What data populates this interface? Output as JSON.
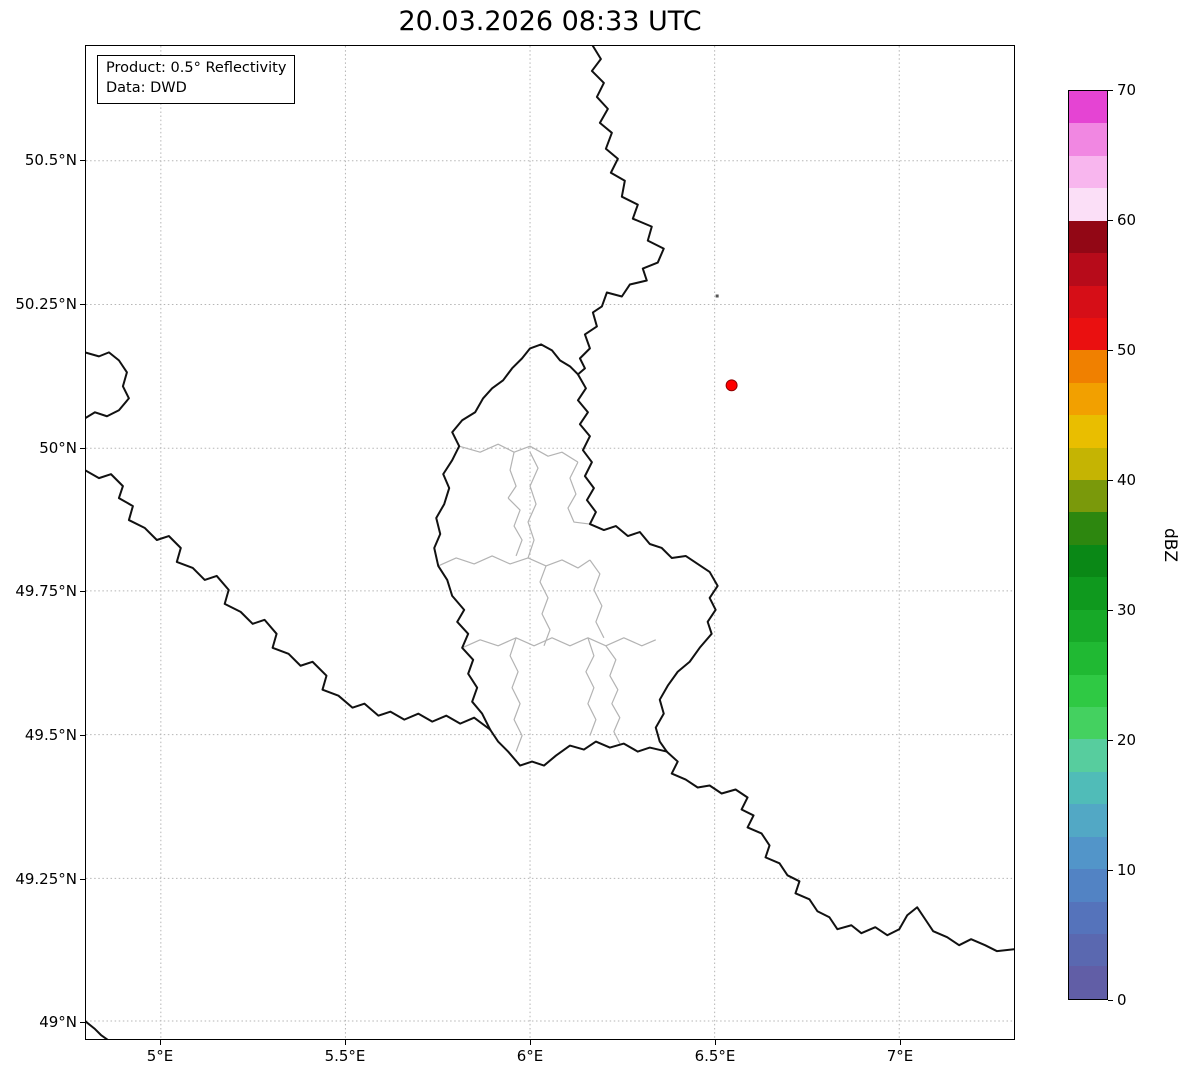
{
  "title": "20.03.2026 08:33 UTC",
  "info_box": {
    "product": "Product: 0.5° Reflectivity",
    "data_source": "Data: DWD"
  },
  "axes": {
    "y_tick_labels": [
      "50.5°N",
      "50.25°N",
      "50°N",
      "49.75°N",
      "49.5°N",
      "49.25°N",
      "49°N"
    ],
    "x_tick_labels": [
      "5°E",
      "5.5°E",
      "6°E",
      "6.5°E",
      "7°E"
    ]
  },
  "colorbar": {
    "label": "dBZ",
    "tick_labels_top_to_bottom": [
      "70",
      "60",
      "50",
      "40",
      "30",
      "20",
      "10",
      "0"
    ],
    "range": [
      0,
      70
    ],
    "colors_bottom_to_top": [
      "#615ea6",
      "#5a68b0",
      "#5573bb",
      "#5283c4",
      "#5295c9",
      "#52a8c5",
      "#50bcb8",
      "#57cd9e",
      "#44d160",
      "#2fc944",
      "#20b933",
      "#17a928",
      "#0f991e",
      "#0a8816",
      "#2d870f",
      "#7a990b",
      "#c5b403",
      "#e9be00",
      "#f2a000",
      "#f08000",
      "#ea1010",
      "#d60e17",
      "#b70b1a",
      "#920715",
      "#fbdff7",
      "#f8b6ee",
      "#f187e2",
      "#e544d3"
    ]
  },
  "marker": {
    "fill": "#ff0000",
    "edge": "#8b0000"
  },
  "map": {
    "border_color": "#111111",
    "district_border_color": "#b3b3b3",
    "grid_color": "#b5b5b5"
  }
}
